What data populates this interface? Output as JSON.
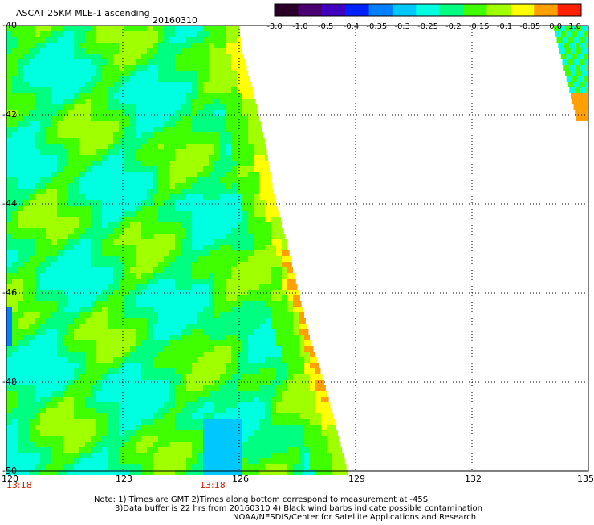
{
  "header": {
    "title": "ASCAT 25KM MLE-1 ascending",
    "date": "20160310"
  },
  "colorbar": {
    "labels": [
      "-3.0",
      "-1.0",
      "-0.5",
      "-0.4",
      "-0.35",
      "-0.3",
      "-0.25",
      "-0.2",
      "-0.15",
      "-0.1",
      "-0.05",
      "0.0",
      "1.0"
    ],
    "colors": [
      "#2a0028",
      "#4a0070",
      "#4000c0",
      "#0020ff",
      "#0080ff",
      "#00c8ff",
      "#00ffe0",
      "#00ff80",
      "#40ff00",
      "#a0ff00",
      "#ffff00",
      "#ffa000",
      "#ff2000"
    ]
  },
  "map": {
    "lon_labels": [
      "120",
      "123",
      "126",
      "129",
      "132",
      "135"
    ],
    "lat_labels": [
      "-40",
      "-42",
      "-44",
      "-46",
      "-48",
      "-50"
    ],
    "times": [
      "13:18",
      "13:18"
    ]
  },
  "notes": {
    "line1": "Note: 1) Times are GMT 2)Times along bottom correspond to measurement at -45S",
    "line2": "3)Data buffer is 22 hrs from 20160310 4) Black wind barbs indicate possible contamination",
    "line3": "NOAA/NESDIS/Center for Satellite Applications and Research"
  }
}
